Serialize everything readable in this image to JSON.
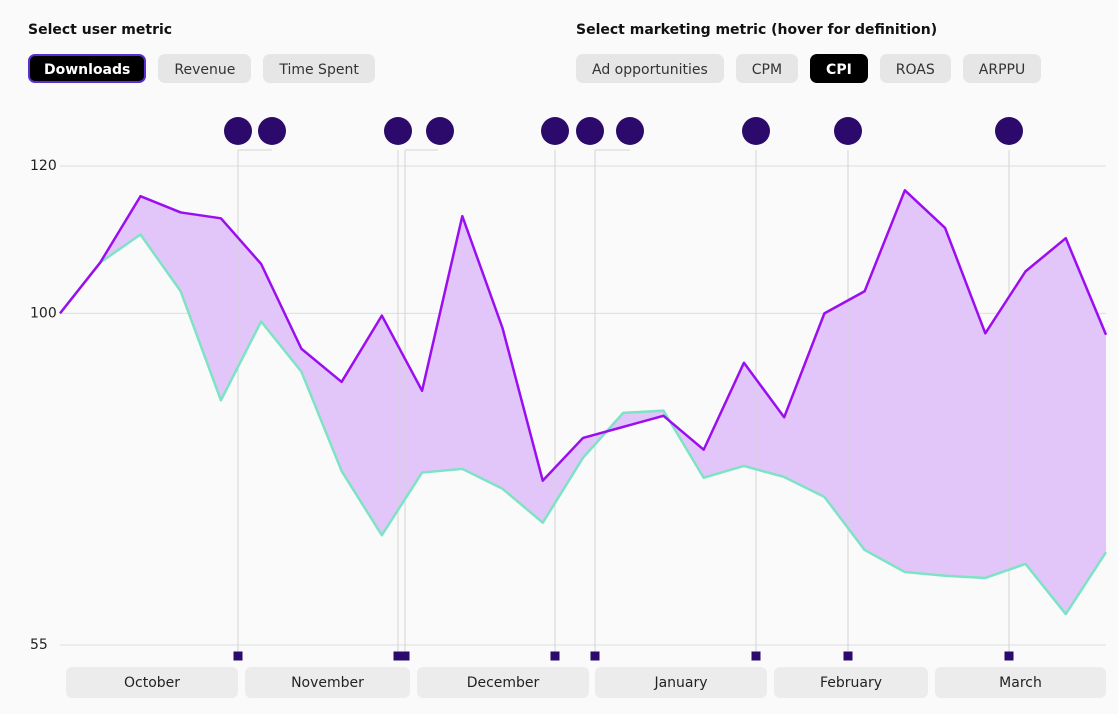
{
  "controls": {
    "user_metric": {
      "label": "Select user metric",
      "options": [
        "Downloads",
        "Revenue",
        "Time Spent"
      ],
      "selected": 0
    },
    "marketing_metric": {
      "label": "Select marketing metric (hover for definition)",
      "options": [
        "Ad opportunities",
        "CPM",
        "CPI",
        "ROAS",
        "ARPPU"
      ],
      "selected": 2
    }
  },
  "chart_data": {
    "type": "line",
    "months": [
      "October",
      "November",
      "December",
      "January",
      "February",
      "March"
    ],
    "series": [
      {
        "color": "#9b0ef0",
        "values": [
          100,
          106.9,
          115.9,
          113.7,
          112.9,
          106.7,
          95.2,
          90.7,
          99.7,
          89.5,
          113.2,
          98.0,
          77.3,
          83.1,
          84.6,
          86.1,
          81.5,
          93.3,
          85.9,
          100,
          103.0,
          116.7,
          111.6,
          97.3,
          105.7,
          110.2,
          97.1
        ]
      },
      {
        "color": "#7de3c4",
        "values": [
          100,
          106.9,
          110.7,
          103.0,
          88.2,
          98.9,
          92.1,
          78.6,
          69.9,
          78.4,
          78.9,
          76.2,
          71.6,
          80.4,
          86.5,
          86.8,
          77.7,
          79.3,
          77.8,
          75.1,
          67.9,
          64.9,
          64.4,
          64.1,
          66.0,
          59.2,
          67.6
        ]
      }
    ],
    "fill_color": "#e2c6fa",
    "ylim": [
      55,
      120
    ],
    "yticks": [
      55,
      100,
      120
    ],
    "grid": true
  }
}
